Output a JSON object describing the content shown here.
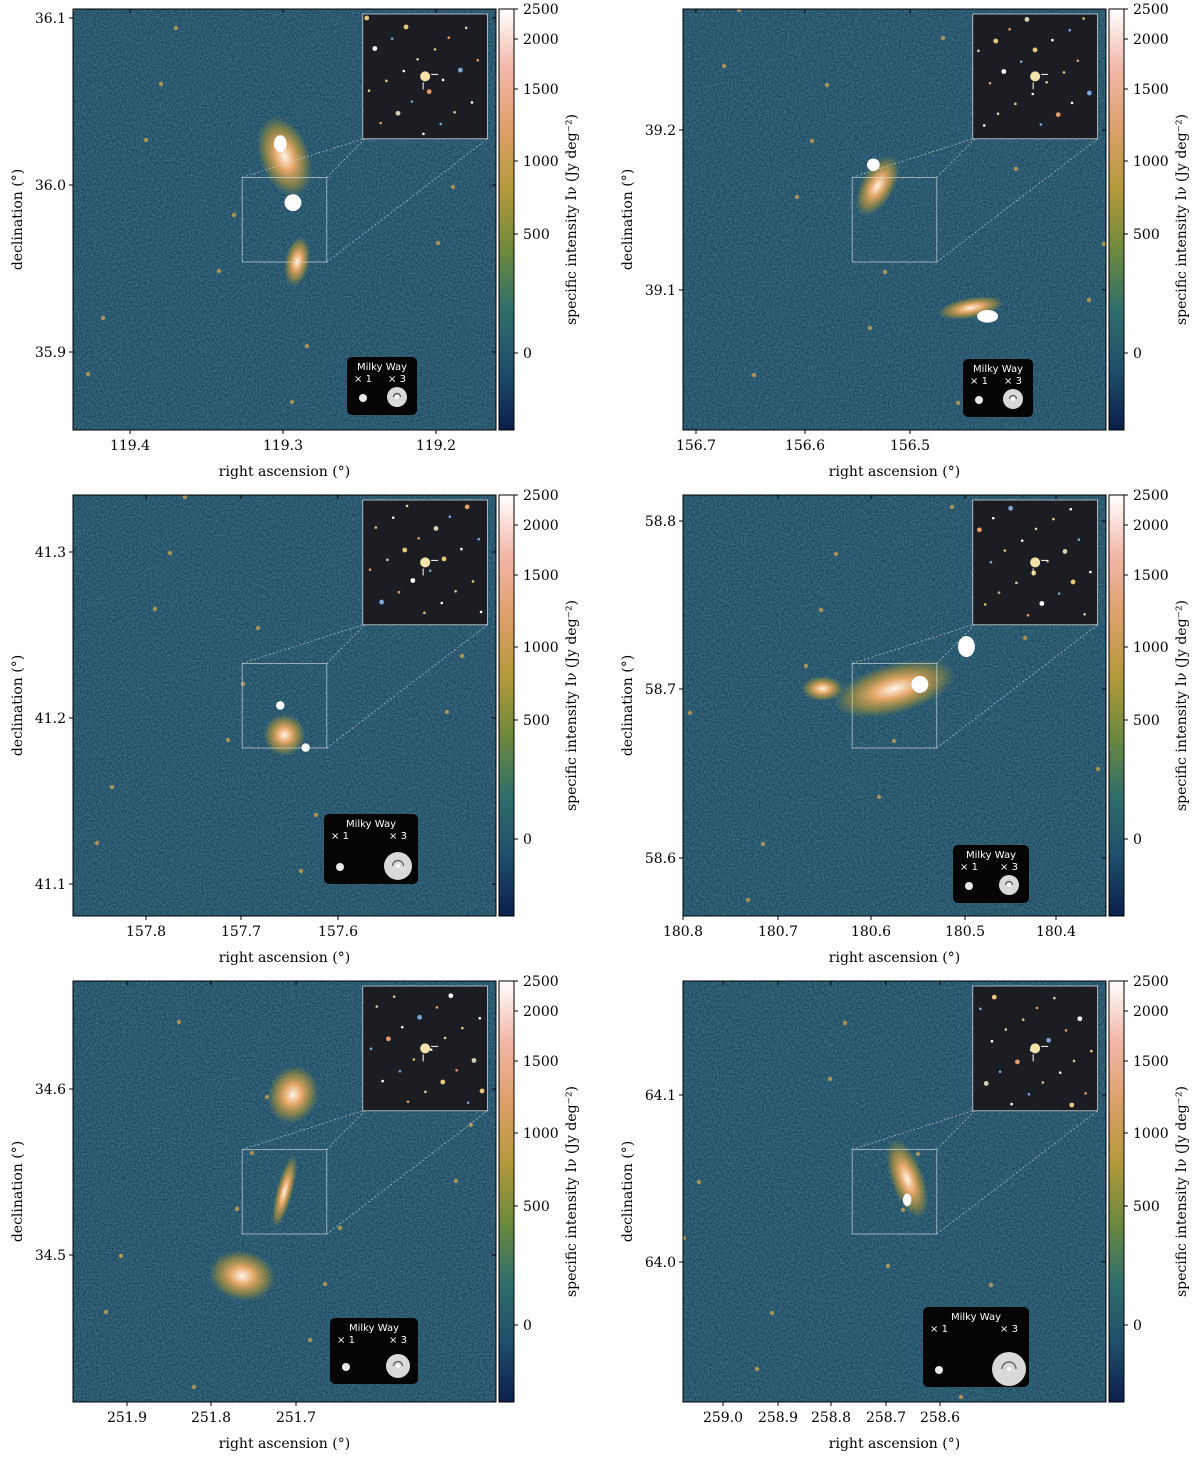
{
  "figure": {
    "colorbar": {
      "label": "specific intensity $I_\\nu$ (Jy deg$^{-2}$)",
      "label_display": "specific intensity Iν (Jy deg⁻²)",
      "ticks": [
        0,
        500,
        1000,
        1500,
        2000,
        2500
      ],
      "colors": [
        "#0b1f4a",
        "#1f4e6b",
        "#2f6f6a",
        "#6e8a3c",
        "#b49a3a",
        "#dca06a",
        "#f2b7a8",
        "#ffffff"
      ]
    },
    "legend": {
      "title": "Milky Way",
      "scale_small": "× 1",
      "scale_large": "× 3"
    },
    "axis_labels": {
      "x": "right ascension (°)",
      "y": "declination (°)"
    },
    "panels": [
      {
        "id": "p1",
        "xticks": [
          "119.4",
          "119.3",
          "119.2"
        ],
        "yticks": [
          "35.9",
          "36.0",
          "36.1"
        ]
      },
      {
        "id": "p2",
        "xticks": [
          "156.7",
          "156.6",
          "156.5"
        ],
        "yticks": [
          "39.1",
          "39.2"
        ]
      },
      {
        "id": "p3",
        "xticks": [
          "157.8",
          "157.7",
          "157.6"
        ],
        "yticks": [
          "41.1",
          "41.2",
          "41.3"
        ]
      },
      {
        "id": "p4",
        "xticks": [
          "180.8",
          "180.7",
          "180.6",
          "180.5",
          "180.4"
        ],
        "yticks": [
          "58.6",
          "58.7",
          "58.8"
        ]
      },
      {
        "id": "p5",
        "xticks": [
          "251.9",
          "251.8",
          "251.7"
        ],
        "yticks": [
          "34.5",
          "34.6"
        ]
      },
      {
        "id": "p6",
        "xticks": [
          "259.0",
          "258.9",
          "258.8",
          "258.7",
          "258.6"
        ],
        "yticks": [
          "64.0",
          "64.1"
        ]
      }
    ]
  }
}
